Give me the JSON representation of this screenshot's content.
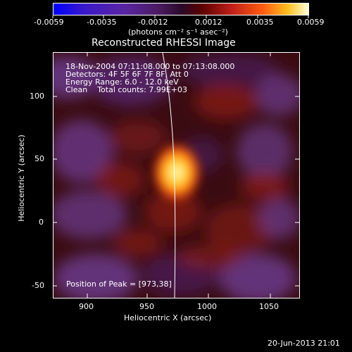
{
  "colorbar": {
    "tick_labels": [
      "-0.0059",
      "-0.0035",
      "-0.0012",
      "0.0012",
      "0.0035",
      "0.0059"
    ],
    "units_label": "(photons cm⁻² s⁻¹ asec⁻²)"
  },
  "plot": {
    "title": "Reconstructed RHESSI Image",
    "info_lines": [
      "18-Nov-2004 07:11:08.000 to 07:13:08.000",
      "Detectors: 4F 5F 6F 7F 8F, Att 0",
      "Energy Range: 6.0 - 12.0 keV",
      "Clean    Total counts: 7.99E+03"
    ],
    "peak_label": "Position of Peak = [973,38]",
    "x_ticks": [
      "900",
      "950",
      "1000",
      "1050"
    ],
    "y_ticks": [
      "100",
      "50",
      "0",
      "-50"
    ],
    "xlabel": "Heliocentric X (arcsec)",
    "ylabel": "Heliocentric Y (arcsec)"
  },
  "footer": {
    "timestamp": "20-Jun-2013 21:01"
  }
}
